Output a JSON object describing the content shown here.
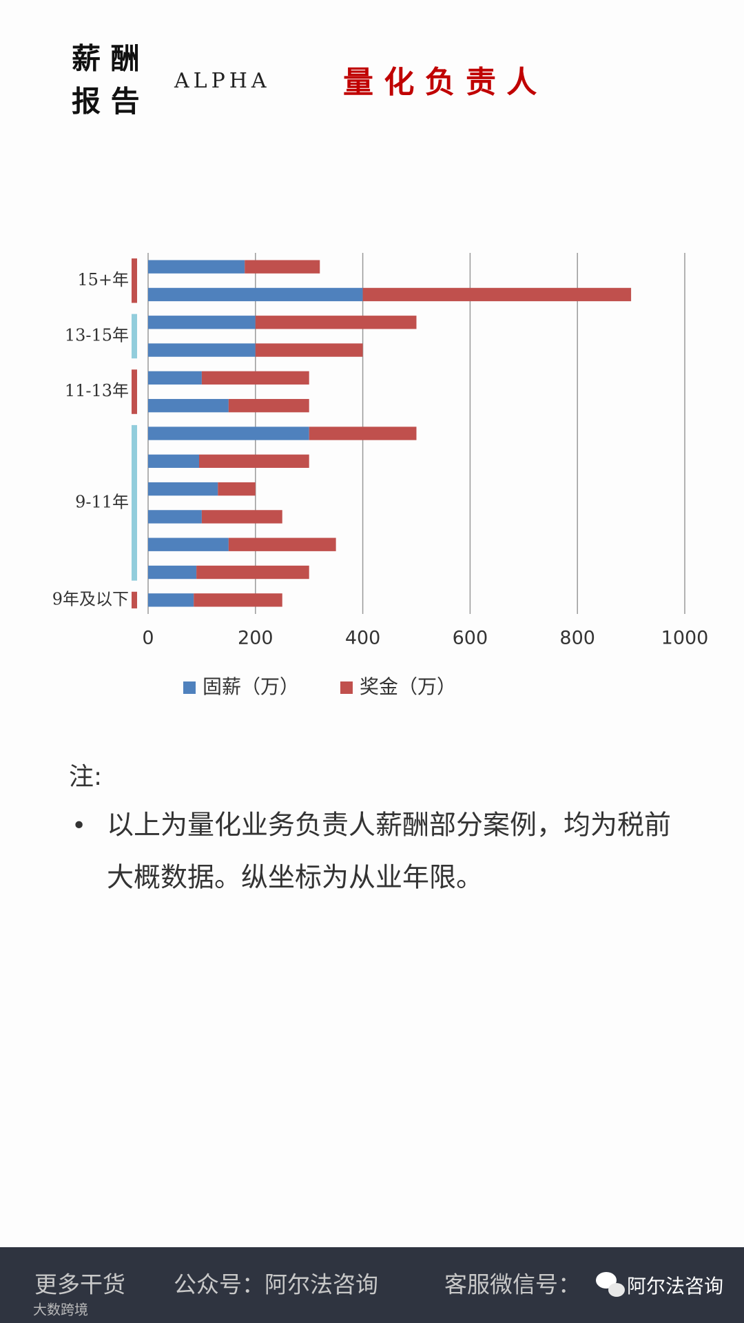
{
  "header": {
    "title_lines": [
      "薪 酬",
      "报 告"
    ],
    "brand": "ALPHA",
    "subtitle": "量 化 负 责 人"
  },
  "chart_data": {
    "type": "stacked_barh",
    "categories": [
      "15+年",
      null,
      "13-15年",
      null,
      "11-13年",
      null,
      "9-11年",
      null,
      null,
      null,
      null,
      null,
      "9年及以下"
    ],
    "group_colors": [
      "#c0504d",
      "#92cddc"
    ],
    "series": [
      {
        "name": "固薪（万）",
        "color": "#4f81bd",
        "values": [
          180,
          400,
          200,
          200,
          100,
          150,
          300,
          95,
          130,
          100,
          150,
          90,
          85
        ]
      },
      {
        "name": "奖金（万）",
        "color": "#c0504d",
        "values": [
          140,
          500,
          300,
          200,
          200,
          150,
          200,
          205,
          70,
          150,
          200,
          210,
          165
        ]
      }
    ],
    "xlim": [
      0,
      1000
    ],
    "xticks": [
      0,
      200,
      400,
      600,
      800,
      1000
    ],
    "grid": true,
    "legend": "bottom"
  },
  "note": {
    "label": "注:",
    "bullet": "•",
    "lines": [
      "以上为量化业务负责人薪酬部分案例，均为税前",
      "大概数据。纵坐标为从业年限。"
    ]
  },
  "footer": {
    "items": [
      "更多干货",
      "公众号：阿尔法咨询",
      "客服微信号："
    ],
    "watermark": "阿尔法咨询",
    "corner_watermark": "大数跨境"
  }
}
